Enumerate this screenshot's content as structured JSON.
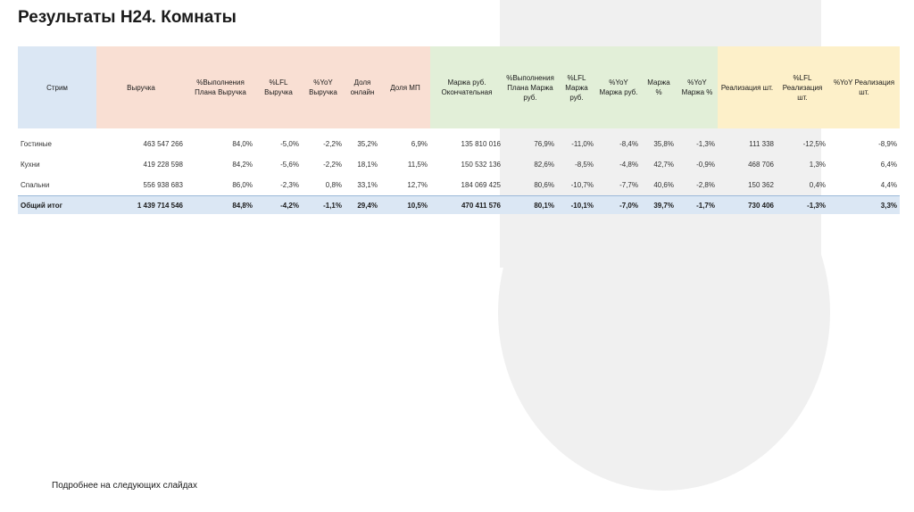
{
  "title": "Результаты H24. Комнаты",
  "footer": "Подробнее на следующих слайдах",
  "colors": {
    "stream_header_bg": "#dbe7f4",
    "revenue_header_bg": "#f9dfd3",
    "margin_header_bg": "#e2efd8",
    "units_header_bg": "#fdf0c9",
    "negative": "#e0171f",
    "positive": "#17a33a"
  },
  "headers": [
    "Стрим",
    "Выручка",
    "%Выполнения Плана Выручка",
    "%LFL Выручка",
    "%YoY Выручка",
    "Доля онлайн",
    "Доля МП",
    "Маржа руб. Окончательная",
    "%Выполнения Плана Маржа руб.",
    "%LFL Маржа руб.",
    "%YoY Маржа руб.",
    "Маржа %",
    "%YoY Маржа %",
    "Реализация шт.",
    "%LFL Реализация шт.",
    "%YoY Реализация шт."
  ],
  "rows": [
    {
      "name": "Гостиные",
      "cells": [
        "463 547 266",
        "84,0%",
        "-5,0%",
        "-2,2%",
        "35,2%",
        "6,9%",
        "135 810 016",
        "76,9%",
        "-11,0%",
        "-8,4%",
        "35,8%",
        "-1,3%",
        "111 338",
        "-12,5%",
        "-8,9%"
      ]
    },
    {
      "name": "Кухни",
      "cells": [
        "419 228 598",
        "84,2%",
        "-5,6%",
        "-2,2%",
        "18,1%",
        "11,5%",
        "150 532 136",
        "82,6%",
        "-8,5%",
        "-4,8%",
        "42,7%",
        "-0,9%",
        "468 706",
        "1,3%",
        "6,4%"
      ]
    },
    {
      "name": "Спальни",
      "cells": [
        "556 938 683",
        "86,0%",
        "-2,3%",
        "0,8%",
        "33,1%",
        "12,7%",
        "184 069 425",
        "80,6%",
        "-10,7%",
        "-7,7%",
        "40,6%",
        "-2,8%",
        "150 362",
        "0,4%",
        "4,4%"
      ]
    }
  ],
  "total": {
    "name": "Общий итог",
    "cells": [
      "1 439 714 546",
      "84,8%",
      "-4,2%",
      "-1,1%",
      "29,4%",
      "10,5%",
      "470 411 576",
      "80,1%",
      "-10,1%",
      "-7,0%",
      "39,7%",
      "-1,7%",
      "730 406",
      "-1,3%",
      "3,3%"
    ]
  }
}
